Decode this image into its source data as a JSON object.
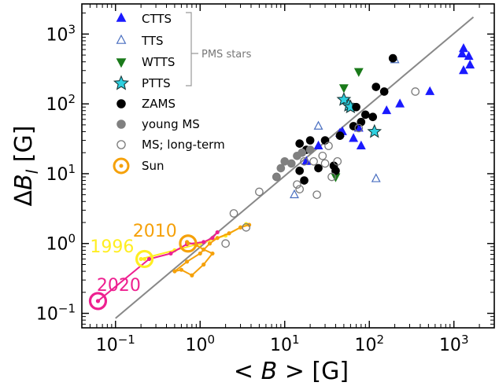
{
  "chart_data": {
    "type": "scatter",
    "xscale": "log",
    "yscale": "log",
    "xlim": [
      0.04,
      3000
    ],
    "ylim": [
      0.062,
      2700
    ],
    "x_ticks": [
      {
        "value": 0.1,
        "base": "10",
        "exp": "−1"
      },
      {
        "value": 1,
        "base": "10",
        "exp": "0"
      },
      {
        "value": 10,
        "base": "10",
        "exp": "1"
      },
      {
        "value": 100,
        "base": "10",
        "exp": "2"
      },
      {
        "value": 1000,
        "base": "10",
        "exp": "3"
      }
    ],
    "y_ticks": [
      {
        "value": 0.1,
        "base": "10",
        "exp": "−1"
      },
      {
        "value": 1,
        "base": "10",
        "exp": "0"
      },
      {
        "value": 10,
        "base": "10",
        "exp": "1"
      },
      {
        "value": 100,
        "base": "10",
        "exp": "2"
      },
      {
        "value": 1000,
        "base": "10",
        "exp": "3"
      }
    ],
    "xlabel": {
      "left": "< ",
      "var": "B",
      "right": " > [G]"
    },
    "ylabel": {
      "delta": "Δ",
      "var": "B",
      "sub": "l",
      "unit": " [G]"
    },
    "fit_line": {
      "x": [
        0.1,
        1700
      ],
      "y": [
        0.085,
        1750
      ],
      "color": "#888888"
    },
    "bracket_label": "PMS stars",
    "series": [
      {
        "name": "CTTS",
        "marker": "triangle-up",
        "color": "#1a1aff",
        "filled": true,
        "points": [
          [
            1300,
            620
          ],
          [
            1250,
            520
          ],
          [
            1500,
            480
          ],
          [
            1550,
            360
          ],
          [
            1300,
            300
          ],
          [
            520,
            150
          ],
          [
            230,
            100
          ],
          [
            160,
            80
          ],
          [
            75,
            45
          ],
          [
            80,
            25
          ],
          [
            65,
            32
          ],
          [
            45,
            38
          ],
          [
            18,
            15
          ],
          [
            25,
            25
          ],
          [
            48,
            40
          ]
        ]
      },
      {
        "name": "TTS",
        "marker": "triangle-up",
        "color": "#4a6fc0",
        "filled": false,
        "points": [
          [
            200,
            430
          ],
          [
            13,
            5
          ],
          [
            120,
            8.5
          ],
          [
            25,
            48
          ],
          [
            60,
            95
          ]
        ]
      },
      {
        "name": "WTTS",
        "marker": "triangle-down",
        "color": "#1a7a1a",
        "filled": true,
        "points": [
          [
            75,
            290
          ],
          [
            50,
            170
          ],
          [
            40,
            9
          ]
        ]
      },
      {
        "name": "PTTS",
        "marker": "star",
        "color": "#2ed0e0",
        "filled": true,
        "points": [
          [
            50,
            115
          ],
          [
            57,
            95
          ],
          [
            60,
            90
          ],
          [
            115,
            40
          ]
        ]
      },
      {
        "name": "ZAMS",
        "marker": "circle",
        "color": "#000000",
        "filled": true,
        "points": [
          [
            190,
            450
          ],
          [
            120,
            175
          ],
          [
            150,
            150
          ],
          [
            70,
            90
          ],
          [
            90,
            70
          ],
          [
            65,
            48
          ],
          [
            80,
            55
          ],
          [
            110,
            65
          ],
          [
            45,
            35
          ],
          [
            30,
            30
          ],
          [
            15,
            27
          ],
          [
            20,
            30
          ],
          [
            18,
            22
          ],
          [
            25,
            12
          ],
          [
            15,
            11
          ],
          [
            40,
            11
          ],
          [
            38,
            13
          ],
          [
            17,
            8
          ]
        ]
      },
      {
        "name": "young MS",
        "marker": "circle",
        "color": "#808080",
        "filled": true,
        "points": [
          [
            10,
            15
          ],
          [
            12,
            14
          ],
          [
            9,
            12
          ],
          [
            8,
            9
          ],
          [
            14,
            18
          ],
          [
            20,
            22
          ],
          [
            16,
            20
          ]
        ]
      },
      {
        "name": "MS; long-term",
        "marker": "circle",
        "color": "#7a7a7a",
        "filled": false,
        "points": [
          [
            350,
            150
          ],
          [
            75,
            45
          ],
          [
            33,
            25
          ],
          [
            28,
            18
          ],
          [
            30,
            14
          ],
          [
            22,
            15
          ],
          [
            17,
            15
          ],
          [
            8,
            9
          ],
          [
            5,
            5.5
          ],
          [
            2.5,
            2.7
          ],
          [
            2.0,
            1.0
          ],
          [
            3.5,
            1.7
          ],
          [
            14,
            7
          ],
          [
            15,
            6
          ],
          [
            24,
            5
          ],
          [
            36,
            9
          ],
          [
            42,
            15
          ]
        ]
      }
    ],
    "sun": {
      "name": "Sun",
      "color": "#f5a10a",
      "cycles": [
        {
          "year": "1996",
          "color": "#ffee22",
          "points": [
            [
              0.2,
              0.6
            ],
            [
              0.5,
              0.8
            ],
            [
              1.0,
              1.0
            ],
            [
              2,
              1.3
            ],
            [
              3,
              1.7
            ],
            [
              3.5,
              1.9
            ]
          ],
          "label_at": [
            0.05,
            0.75
          ]
        },
        {
          "year": "2010",
          "color": "#f5a10a",
          "points": [
            [
              0.7,
              1.05
            ],
            [
              0.9,
              0.95
            ],
            [
              1.1,
              0.82
            ],
            [
              1.4,
              0.72
            ],
            [
              1.1,
              0.5
            ],
            [
              0.8,
              0.35
            ],
            [
              0.6,
              0.42
            ],
            [
              0.5,
              0.4
            ],
            [
              0.7,
              0.55
            ],
            [
              1.0,
              0.72
            ],
            [
              1.3,
              1.0
            ],
            [
              1.6,
              1.2
            ],
            [
              2.2,
              1.4
            ],
            [
              3.0,
              1.7
            ],
            [
              3.8,
              1.85
            ]
          ],
          "label_at": [
            0.16,
            1.25
          ]
        },
        {
          "year": "2020",
          "color": "#ee2090",
          "points": [
            [
              0.062,
              0.15
            ],
            [
              0.25,
              0.6
            ],
            [
              0.45,
              0.72
            ],
            [
              0.7,
              0.98
            ],
            [
              1.1,
              1.05
            ],
            [
              1.4,
              1.2
            ],
            [
              1.6,
              1.45
            ]
          ],
          "label_at": [
            0.06,
            0.21
          ]
        }
      ],
      "circles": [
        {
          "x": 0.22,
          "y": 0.6,
          "color": "#ffee22"
        },
        {
          "x": 0.72,
          "y": 1.0,
          "color": "#f5a10a"
        },
        {
          "x": 0.062,
          "y": 0.15,
          "color": "#ee2090"
        }
      ]
    }
  }
}
